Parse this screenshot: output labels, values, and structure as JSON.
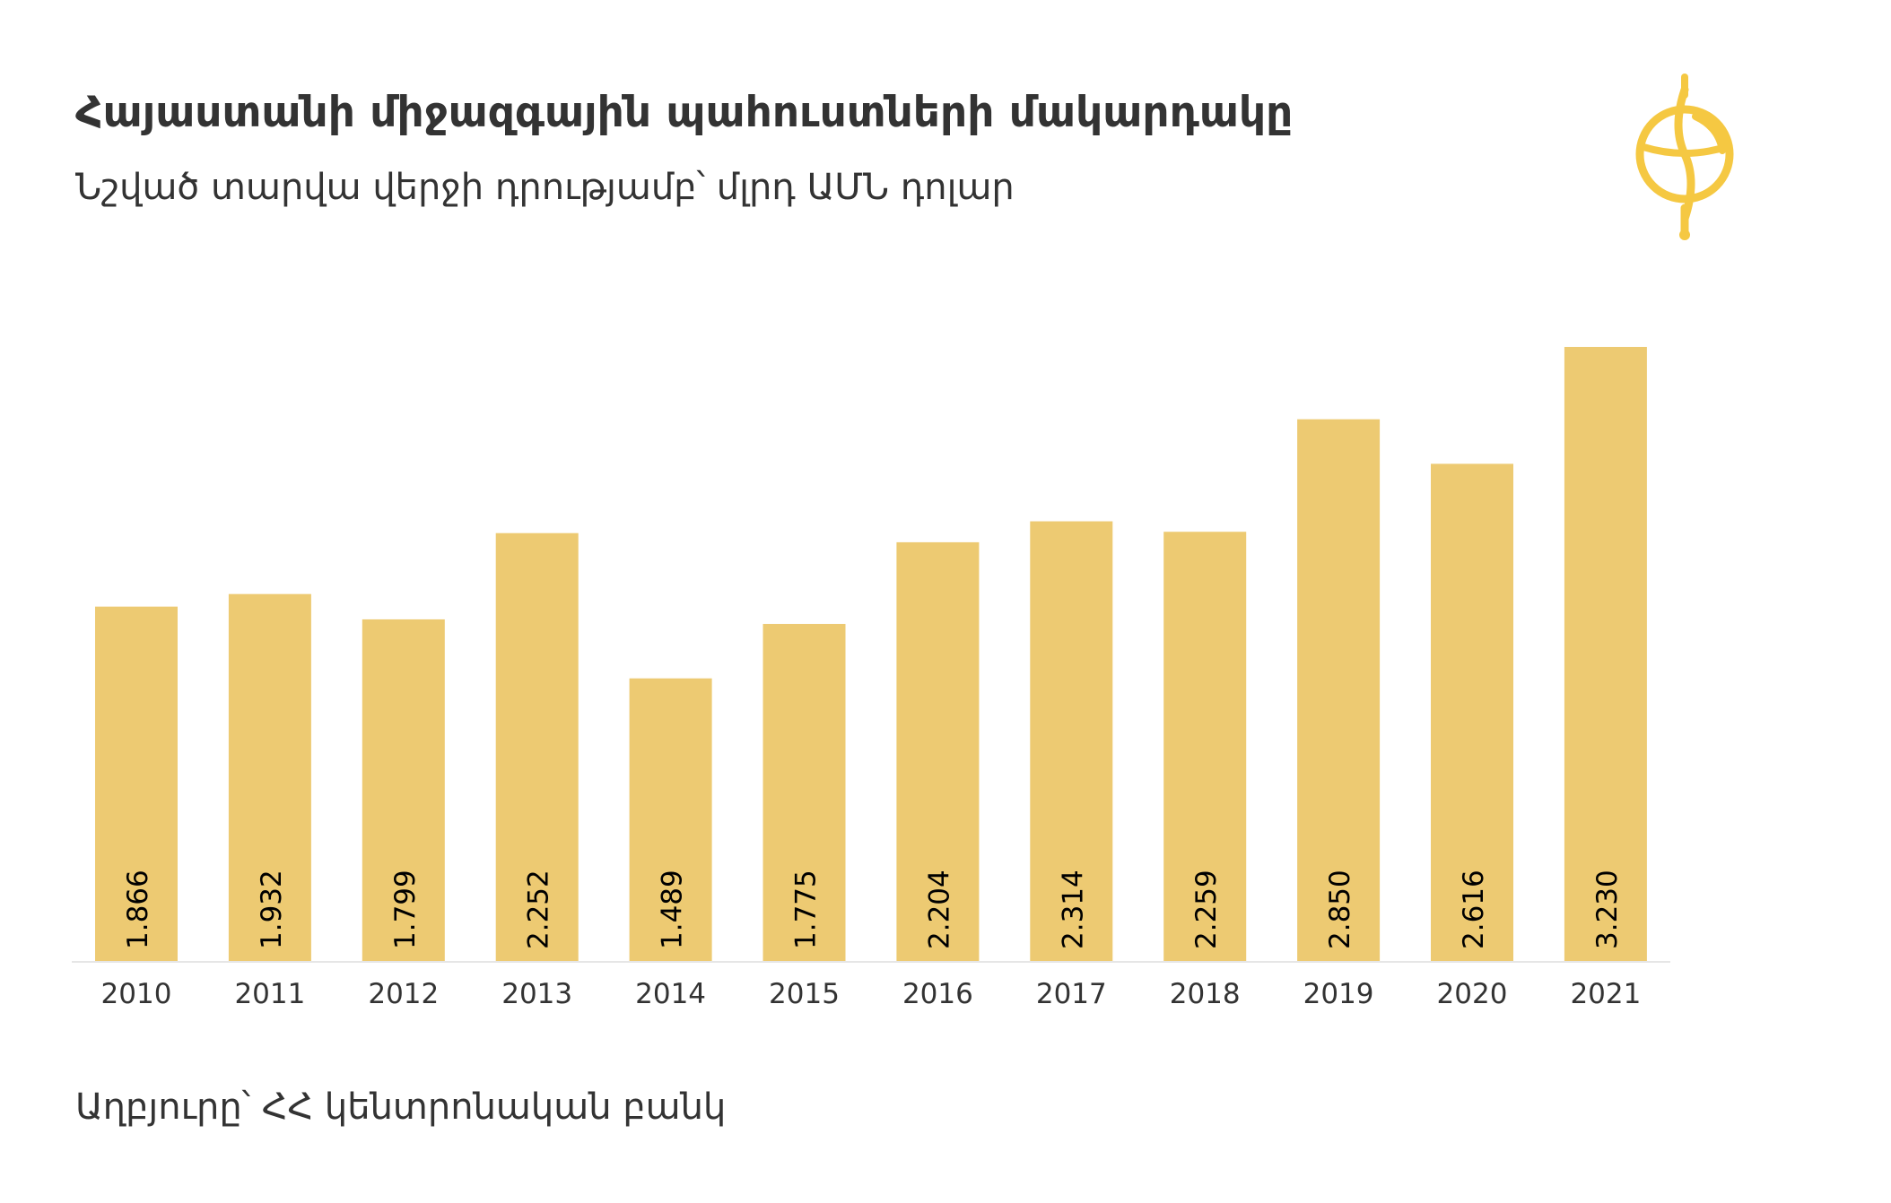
{
  "header": {
    "title": "Հայաստանի միջազգային պահուստների մակարդակը",
    "subtitle": "Նշված տարվա վերջի դրությամբ՝ մլրդ ԱՄՆ դոլար"
  },
  "footer": {
    "source": "Աղբյուրը՝ ՀՀ կենտրոնական բանկ"
  },
  "logo": {
    "icon": "globe-logo-icon",
    "color": "#F5C842"
  },
  "colors": {
    "bar": "#EDCA72",
    "axis": "#E6E6E6",
    "label": "#000000",
    "tick": "#333333"
  },
  "chart_data": {
    "type": "bar",
    "title": "Հայաստանի միջազգային պահուստների մակարդակը",
    "subtitle": "Նշված տարվա վերջի դրությամբ՝ մլրդ ԱՄՆ դոլար",
    "categories": [
      "2010",
      "2011",
      "2012",
      "2013",
      "2014",
      "2015",
      "2016",
      "2017",
      "2018",
      "2019",
      "2020",
      "2021"
    ],
    "values": [
      1.866,
      1.932,
      1.799,
      2.252,
      1.489,
      1.775,
      2.204,
      2.314,
      2.259,
      2.85,
      2.616,
      3.23
    ],
    "value_labels": [
      "1.866",
      "1.932",
      "1.799",
      "2.252",
      "1.489",
      "1.775",
      "2.204",
      "2.314",
      "2.259",
      "2.850",
      "2.616",
      "3.230"
    ],
    "xlabel": "",
    "ylabel": "",
    "ylim": [
      0,
      3.23
    ],
    "grid": false,
    "legend": "none"
  }
}
